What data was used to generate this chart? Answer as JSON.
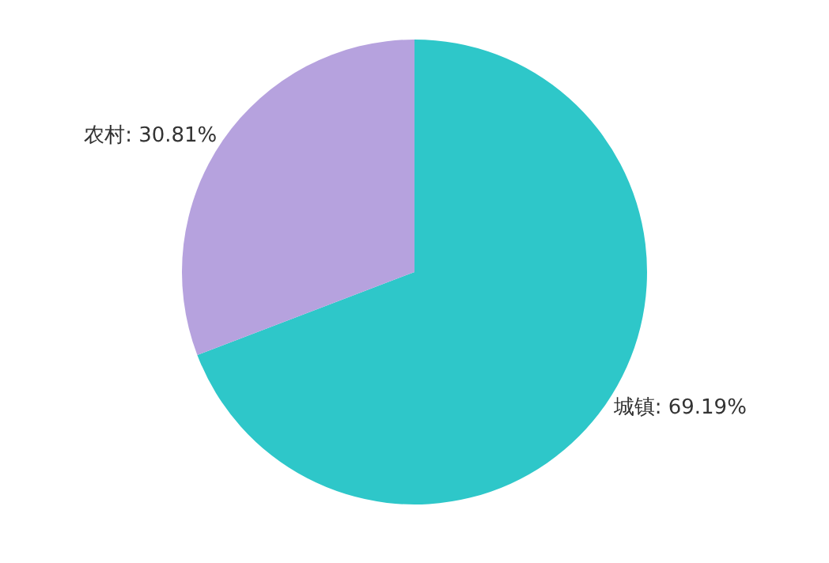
{
  "chart_data": {
    "type": "pie",
    "categories": [
      "城镇",
      "农村"
    ],
    "values": [
      69.19,
      30.81
    ],
    "colors": [
      "#2ec7c9",
      "#b6a2de"
    ],
    "value_labels": [
      "69.19%",
      "30.81%"
    ],
    "legend": false
  }
}
